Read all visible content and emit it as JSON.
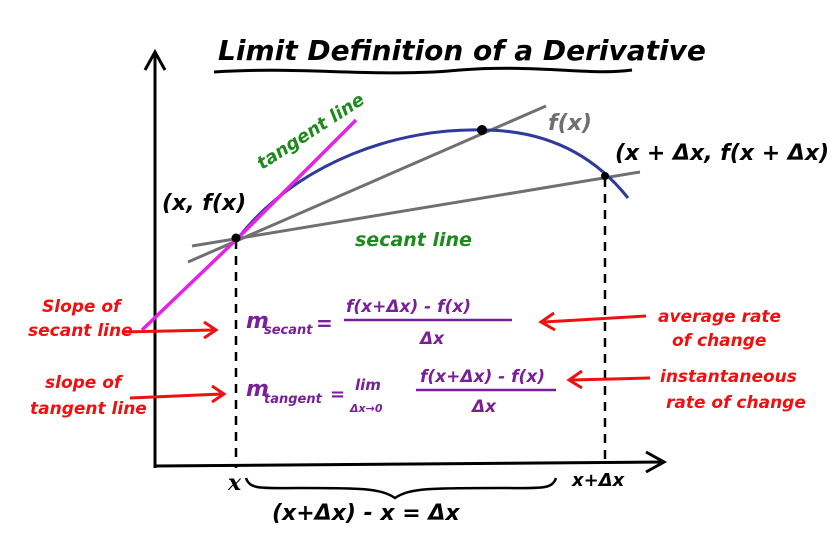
{
  "title": "Limit Definition of a Derivative",
  "curve_label": "f(x)",
  "tangent_label": "tangent line",
  "secant_label": "secant line",
  "point_a_label": "(x, f(x)",
  "point_b_label": "(x + Δx, f(x + Δx)",
  "x_tick": "x",
  "x_dx_tick": "x+Δx",
  "brace_label": "(x+Δx) - x = Δx",
  "left_notes": {
    "secant_1": "Slope of",
    "secant_2": "secant line",
    "tangent_1": "slope of",
    "tangent_2": "tangent line"
  },
  "right_notes": {
    "average_1": "average rate",
    "average_2": "of change",
    "instant_1": "instantaneous",
    "instant_2": "rate of change"
  },
  "formulas": {
    "m_secant_m": "m",
    "m_secant_sub": "secant",
    "secant_equals": "=",
    "secant_numerator": "f(x+Δx) - f(x)",
    "secant_denominator": "Δx",
    "m_tangent_m": "m",
    "m_tangent_sub": "tangent",
    "tangent_equals": "=",
    "lim": "lim",
    "lim_sub": "Δx→0",
    "tangent_numerator": "f(x+Δx) - f(x)",
    "tangent_denominator": "Δx"
  },
  "colors": {
    "ink": "#000000",
    "curve": "#303a9a",
    "tangent": "#e820e8",
    "secant": "#707070",
    "green": "#1e8a1e",
    "red": "#ee1111",
    "purple": "#7a1f9a"
  }
}
